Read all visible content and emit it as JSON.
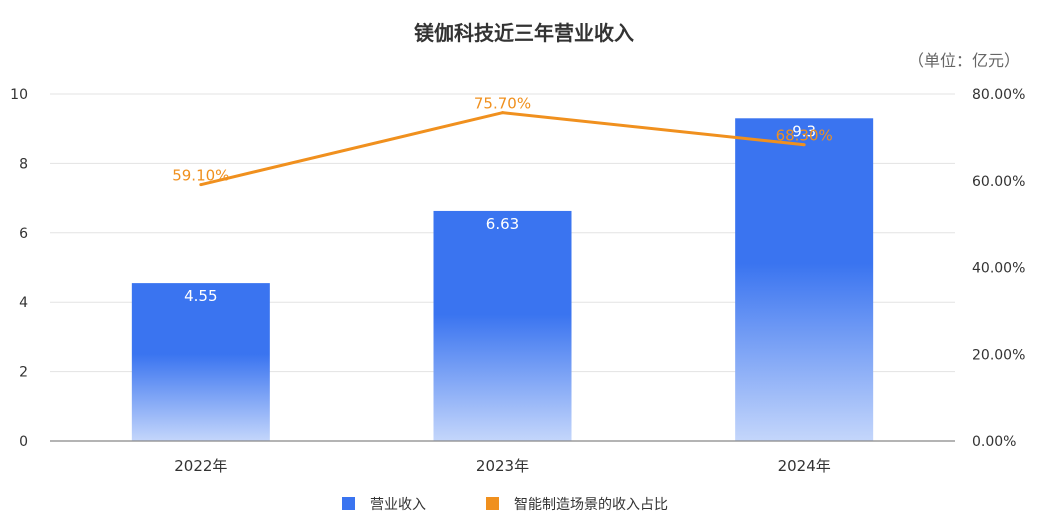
{
  "chart_data": {
    "type": "bar",
    "title": "镁伽科技近三年营业收入",
    "unit_note": "（单位：亿元）",
    "categories": [
      "2022年",
      "2023年",
      "2024年"
    ],
    "series": [
      {
        "name": "营业收入",
        "type": "bar",
        "axis": "left",
        "values": [
          4.55,
          6.63,
          9.3
        ],
        "labels": [
          "4.55",
          "6.63",
          "9.3"
        ],
        "color": "#3a74f0"
      },
      {
        "name": "智能制造场景的收入占比",
        "type": "line",
        "axis": "right",
        "values": [
          59.1,
          75.7,
          68.3
        ],
        "labels": [
          "59.10%",
          "75.70%",
          "68.30%"
        ],
        "color": "#f0901e"
      }
    ],
    "y_left": {
      "ylim": [
        0,
        10
      ],
      "ticks": [
        "0",
        "2",
        "4",
        "6",
        "8",
        "10"
      ]
    },
    "y_right": {
      "ylim": [
        0,
        80
      ],
      "ticks": [
        "0.00%",
        "20.00%",
        "40.00%",
        "60.00%",
        "80.00%"
      ]
    },
    "grid": true,
    "legend_position": "bottom"
  }
}
